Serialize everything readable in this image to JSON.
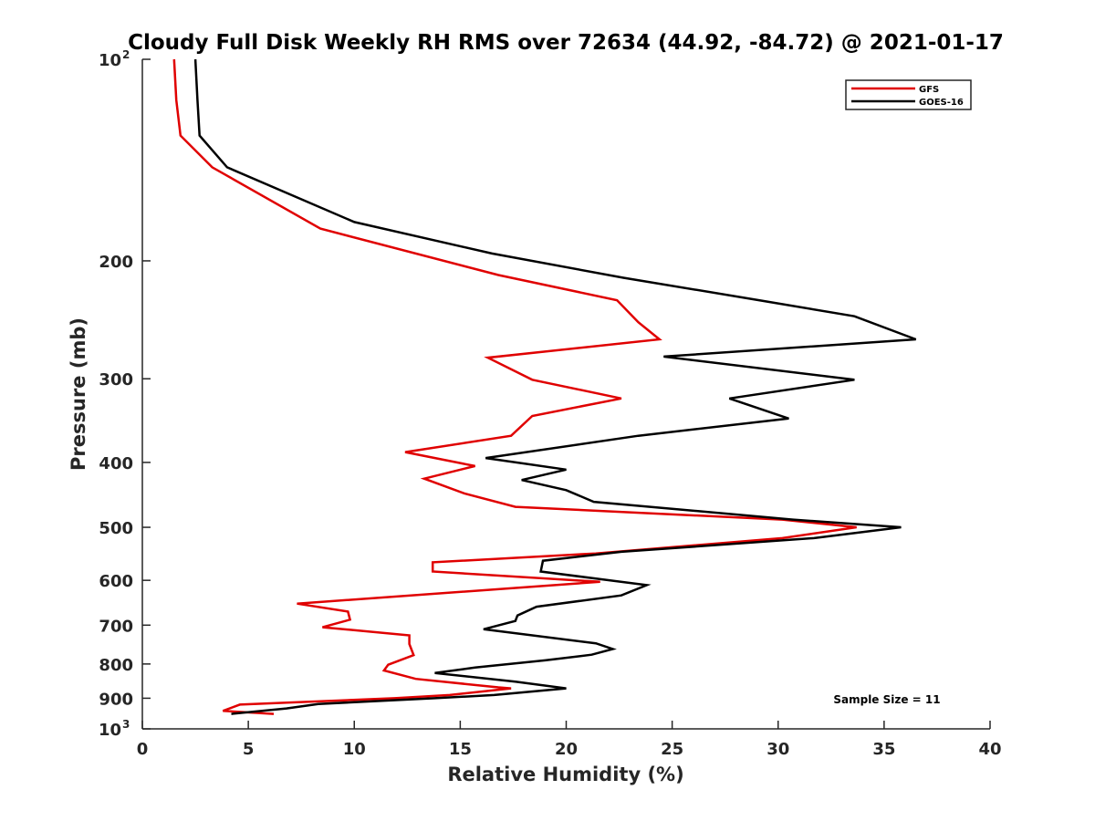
{
  "chart_data": {
    "type": "line",
    "title": "Cloudy Full Disk Weekly RH RMS over 72634 (44.92, -84.72) @ 2021-01-17",
    "xlabel": "Relative Humidity (%)",
    "ylabel": "Pressure (mb)",
    "xlim": [
      0,
      40
    ],
    "ylim": [
      100,
      1000
    ],
    "y_scale": "log",
    "y_reversed": true,
    "x_ticks": [
      0,
      5,
      10,
      15,
      20,
      25,
      30,
      35,
      40
    ],
    "y_ticks": [
      {
        "value": 100,
        "base": "10",
        "exp": "2"
      },
      {
        "value": 200,
        "label": "200"
      },
      {
        "value": 300,
        "label": "300"
      },
      {
        "value": 400,
        "label": "400"
      },
      {
        "value": 500,
        "label": "500"
      },
      {
        "value": 600,
        "label": "600"
      },
      {
        "value": 700,
        "label": "700"
      },
      {
        "value": 800,
        "label": "800"
      },
      {
        "value": 900,
        "label": "900"
      },
      {
        "value": 1000,
        "base": "10",
        "exp": "3"
      }
    ],
    "grid": false,
    "legend_position": "top-right",
    "annotation": "Sample Size = 11",
    "series": [
      {
        "name": "GFS",
        "color": "#e00000",
        "points": [
          [
            1.5,
            100
          ],
          [
            1.6,
            115
          ],
          [
            1.8,
            130
          ],
          [
            3.3,
            145
          ],
          [
            8.4,
            179
          ],
          [
            16.8,
            210
          ],
          [
            22.4,
            229
          ],
          [
            23.4,
            247
          ],
          [
            24.4,
            262
          ],
          [
            16.3,
            279
          ],
          [
            18.4,
            301
          ],
          [
            22.6,
            321
          ],
          [
            18.4,
            341
          ],
          [
            17.4,
            365
          ],
          [
            12.4,
            386
          ],
          [
            15.7,
            405
          ],
          [
            13.3,
            423
          ],
          [
            15.2,
            445
          ],
          [
            17.6,
            466
          ],
          [
            30.2,
            487
          ],
          [
            33.7,
            500
          ],
          [
            30.2,
            519
          ],
          [
            21.4,
            547
          ],
          [
            13.7,
            564
          ],
          [
            13.7,
            582
          ],
          [
            21.6,
            603
          ],
          [
            7.3,
            650
          ],
          [
            9.7,
            668
          ],
          [
            9.8,
            687
          ],
          [
            8.5,
            705
          ],
          [
            12.6,
            725
          ],
          [
            12.6,
            747
          ],
          [
            12.8,
            776
          ],
          [
            11.6,
            802
          ],
          [
            11.4,
            818
          ],
          [
            12.9,
            842
          ],
          [
            16.8,
            867
          ],
          [
            17.4,
            870
          ],
          [
            14.5,
            890
          ],
          [
            11.9,
            900
          ],
          [
            6.3,
            915
          ],
          [
            4.6,
            920
          ],
          [
            3.8,
            940
          ],
          [
            6.2,
            950
          ]
        ]
      },
      {
        "name": "GOES-16",
        "color": "#000000",
        "points": [
          [
            2.5,
            100
          ],
          [
            2.6,
            115
          ],
          [
            2.7,
            130
          ],
          [
            4.0,
            145
          ],
          [
            10.0,
            175
          ],
          [
            16.5,
            195
          ],
          [
            22.7,
            212
          ],
          [
            29.1,
            229
          ],
          [
            33.6,
            242
          ],
          [
            36.5,
            262
          ],
          [
            24.6,
            278
          ],
          [
            33.6,
            301
          ],
          [
            27.7,
            321
          ],
          [
            30.5,
            344
          ],
          [
            23.4,
            365
          ],
          [
            16.2,
            394
          ],
          [
            20.0,
            410
          ],
          [
            17.9,
            425
          ],
          [
            20.0,
            440
          ],
          [
            21.3,
            458
          ],
          [
            30.7,
            487
          ],
          [
            35.8,
            500
          ],
          [
            31.7,
            519
          ],
          [
            22.6,
            544
          ],
          [
            18.9,
            561
          ],
          [
            18.8,
            582
          ],
          [
            23.8,
            610
          ],
          [
            22.6,
            632
          ],
          [
            18.6,
            657
          ],
          [
            17.7,
            677
          ],
          [
            17.6,
            690
          ],
          [
            16.1,
            710
          ],
          [
            21.4,
            745
          ],
          [
            22.2,
            760
          ],
          [
            21.2,
            775
          ],
          [
            19.0,
            790
          ],
          [
            15.7,
            810
          ],
          [
            13.8,
            825
          ],
          [
            17.6,
            850
          ],
          [
            20.0,
            870
          ],
          [
            16.6,
            890
          ],
          [
            13.8,
            900
          ],
          [
            8.3,
            918
          ],
          [
            6.8,
            932
          ],
          [
            4.2,
            950
          ]
        ]
      }
    ]
  }
}
